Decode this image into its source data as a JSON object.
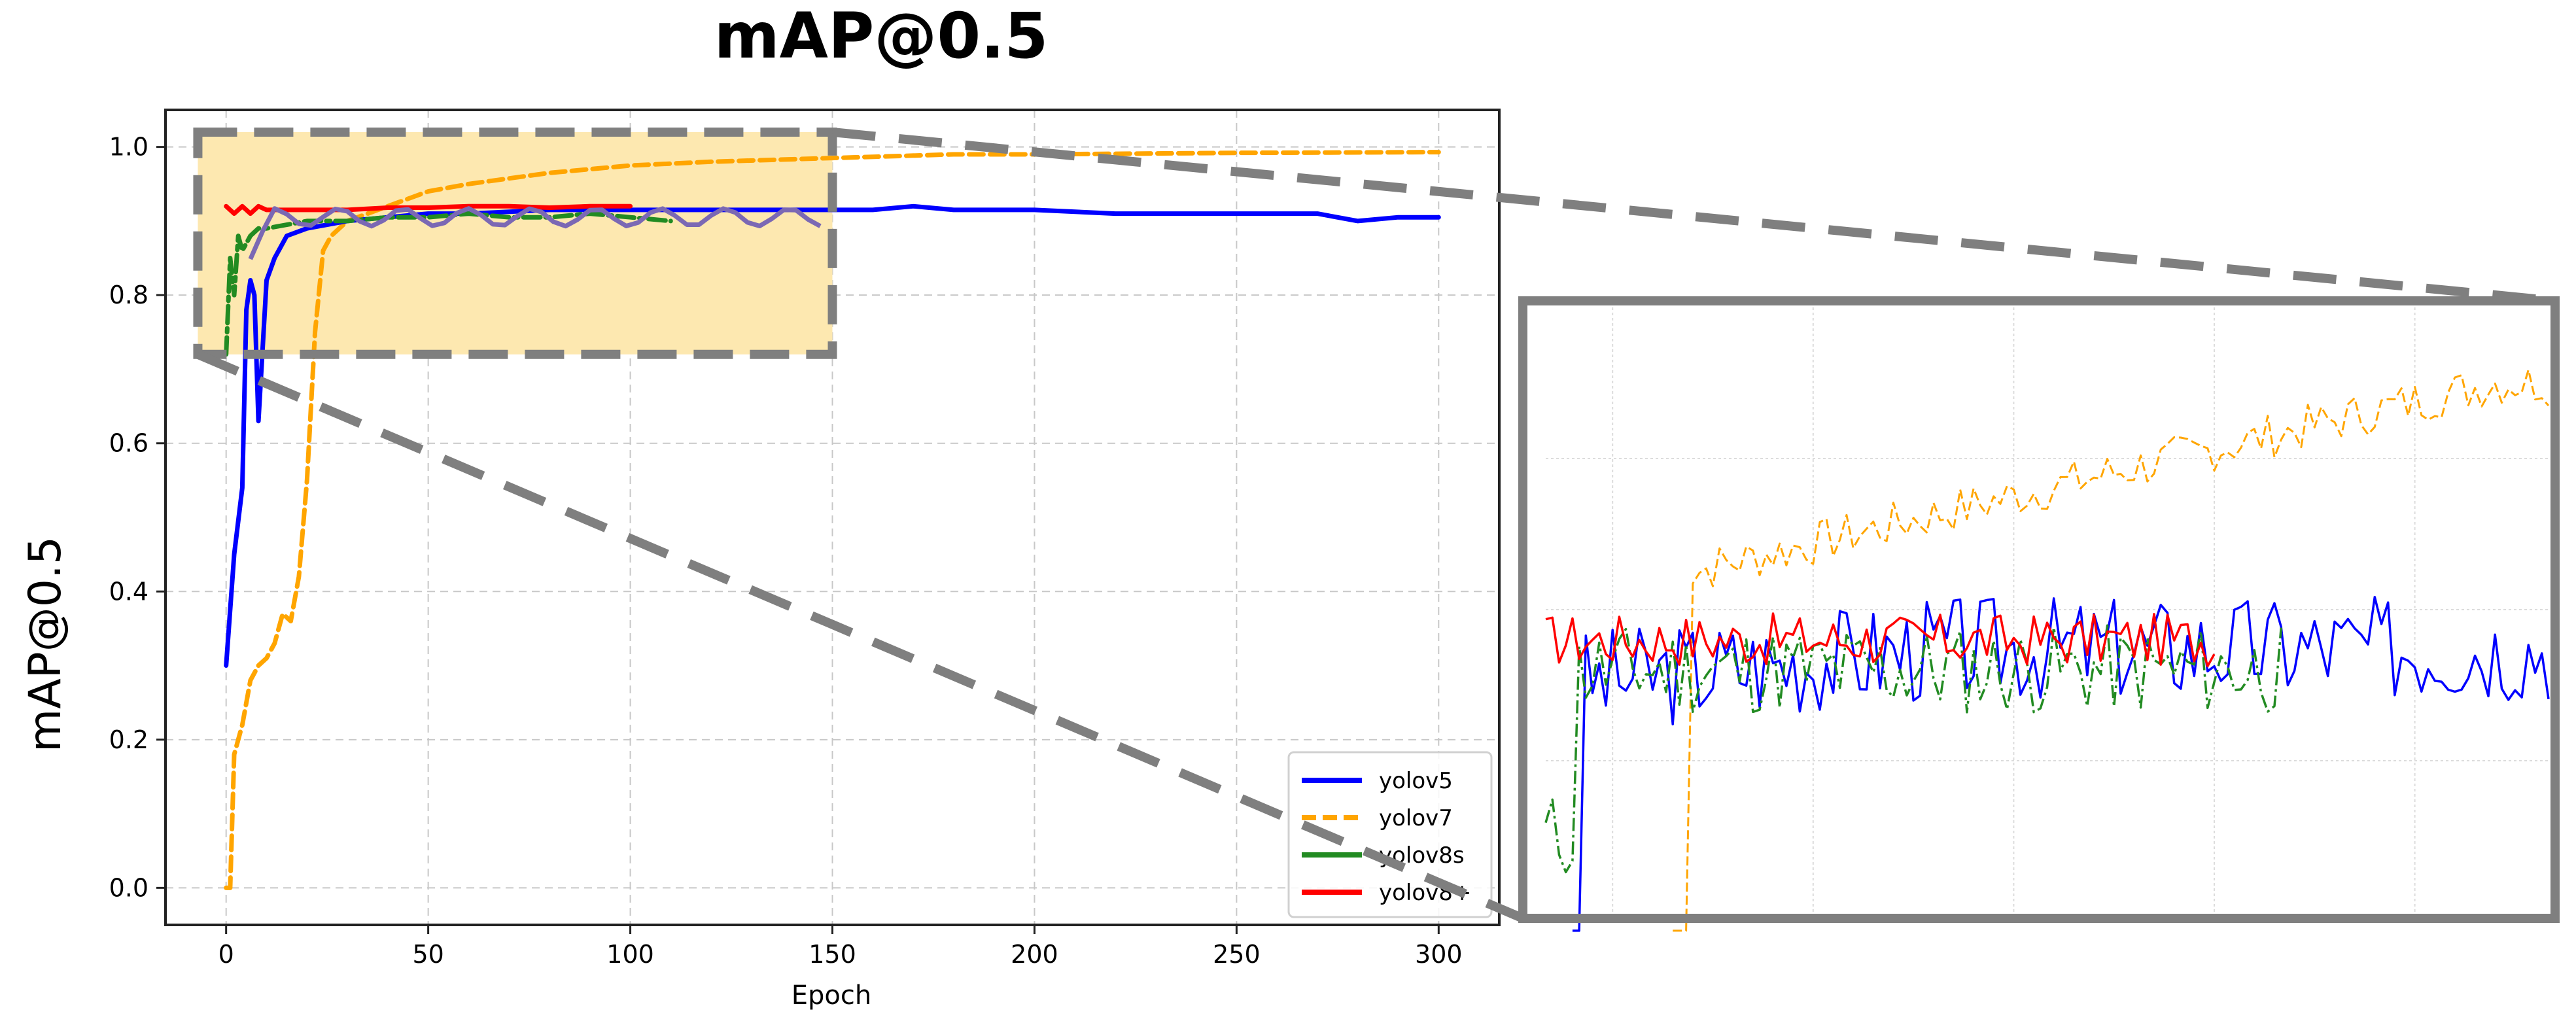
{
  "figure": {
    "title": "mAP@0.5",
    "ylabel": "mAP@0.5",
    "xlabel": "Epoch"
  },
  "colors": {
    "yolov5": "#0000ff",
    "yolov7": "#ffa500",
    "yolov8s": "#228b22",
    "yolov8plus": "#ff0000",
    "overlap": "#7b68b4",
    "highlight": "#fde8b0",
    "zoom_frame": "#7f7f7f",
    "grid": "#c8c8c8"
  },
  "chart_data": {
    "type": "line",
    "title": "mAP@0.5",
    "xlabel": "Epoch",
    "ylabel": "mAP@0.5",
    "xlim": [
      -15,
      315
    ],
    "ylim": [
      -0.05,
      1.05
    ],
    "xticks": [
      "0",
      "50",
      "100",
      "150",
      "200",
      "250",
      "300"
    ],
    "yticks": [
      "0.0",
      "0.2",
      "0.4",
      "0.6",
      "0.8",
      "1.0"
    ],
    "grid": true,
    "legend_position": "lower-right",
    "legend": [
      "yolov5",
      "yolov7",
      "yolov8s",
      "yolov8+"
    ],
    "zoom_region": {
      "x": [
        -7,
        150
      ],
      "y": [
        0.72,
        1.02
      ]
    },
    "series": [
      {
        "name": "yolov5",
        "x": [
          0,
          2,
          4,
          5,
          6,
          7,
          8,
          10,
          12,
          15,
          20,
          30,
          40,
          50,
          60,
          80,
          100,
          120,
          150,
          160,
          170,
          180,
          200,
          220,
          240,
          260,
          270,
          280,
          290,
          300
        ],
        "y": [
          0.3,
          0.45,
          0.54,
          0.78,
          0.82,
          0.8,
          0.63,
          0.82,
          0.85,
          0.88,
          0.89,
          0.9,
          0.905,
          0.91,
          0.91,
          0.915,
          0.915,
          0.915,
          0.915,
          0.915,
          0.92,
          0.915,
          0.915,
          0.91,
          0.91,
          0.91,
          0.91,
          0.9,
          0.905,
          0.905
        ]
      },
      {
        "name": "yolov7",
        "x": [
          0,
          1,
          2,
          4,
          6,
          8,
          10,
          12,
          14,
          16,
          18,
          20,
          22,
          24,
          26,
          30,
          40,
          50,
          60,
          80,
          100,
          120,
          150,
          180,
          200,
          250,
          300
        ],
        "y": [
          0.0,
          0.0,
          0.18,
          0.22,
          0.28,
          0.3,
          0.31,
          0.33,
          0.37,
          0.36,
          0.42,
          0.55,
          0.75,
          0.86,
          0.88,
          0.9,
          0.92,
          0.94,
          0.95,
          0.965,
          0.975,
          0.98,
          0.985,
          0.99,
          0.99,
          0.992,
          0.993
        ]
      },
      {
        "name": "yolov8s",
        "x": [
          0,
          1,
          2,
          3,
          4,
          5,
          6,
          8,
          10,
          15,
          20,
          30,
          40,
          50,
          60,
          70,
          80,
          90,
          100,
          110
        ],
        "y": [
          0.72,
          0.85,
          0.8,
          0.88,
          0.86,
          0.87,
          0.88,
          0.89,
          0.89,
          0.895,
          0.9,
          0.9,
          0.905,
          0.905,
          0.91,
          0.905,
          0.905,
          0.91,
          0.905,
          0.9
        ]
      },
      {
        "name": "yolov8+",
        "x": [
          0,
          2,
          4,
          6,
          8,
          10,
          15,
          20,
          30,
          40,
          50,
          60,
          70,
          80,
          90,
          100
        ],
        "y": [
          0.92,
          0.91,
          0.92,
          0.91,
          0.92,
          0.915,
          0.915,
          0.915,
          0.915,
          0.918,
          0.918,
          0.92,
          0.92,
          0.918,
          0.92,
          0.92
        ]
      }
    ]
  }
}
